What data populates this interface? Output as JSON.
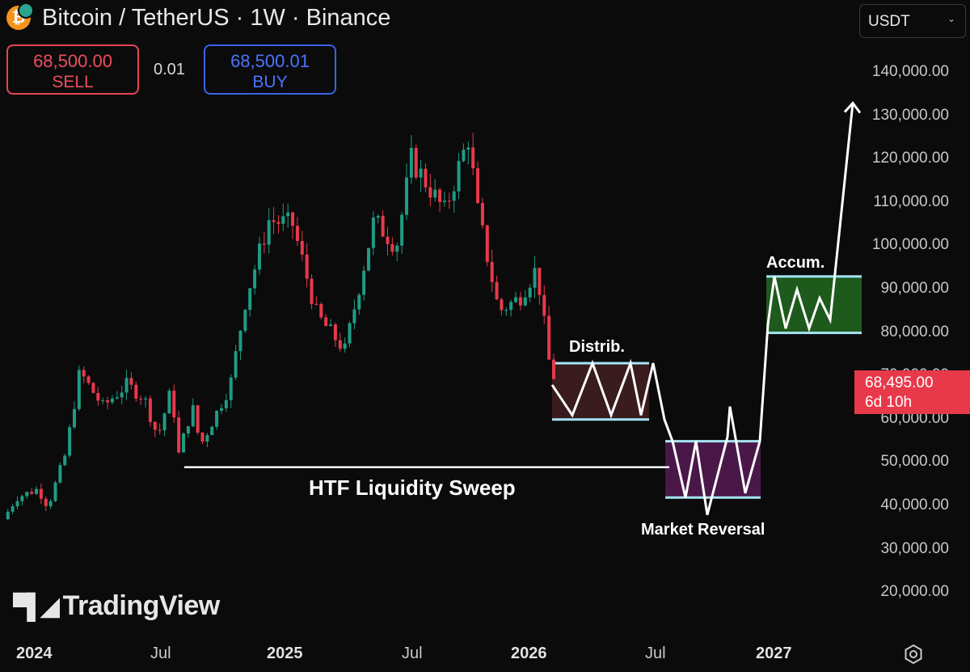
{
  "header": {
    "symbol_title": "Bitcoin / TetherUS · 1W · Binance",
    "icon": "bitcoin-icon"
  },
  "trade": {
    "sell_price": "68,500.00",
    "sell_label": "SELL",
    "spread": "0.01",
    "buy_price": "68,500.01",
    "buy_label": "BUY"
  },
  "currency_select": {
    "value": "USDT"
  },
  "y_axis": {
    "labels": [
      "140,000.00",
      "130,000.00",
      "120,000.00",
      "110,000.00",
      "100,000.00",
      "90,000.00",
      "80,000.00",
      "70,000.00",
      "60,000.00",
      "50,000.00",
      "40,000.00",
      "30,000.00",
      "20,000.00"
    ]
  },
  "x_axis": {
    "labels": [
      {
        "text": "2024",
        "major": true
      },
      {
        "text": "Jul",
        "major": false
      },
      {
        "text": "2025",
        "major": true
      },
      {
        "text": "Jul",
        "major": false
      },
      {
        "text": "2026",
        "major": true
      },
      {
        "text": "Jul",
        "major": false
      },
      {
        "text": "2027",
        "major": true
      }
    ]
  },
  "price_tag": {
    "price": "68,495.00",
    "countdown": "6d 10h"
  },
  "annotations": {
    "distribution": "Distrib.",
    "accumulation": "Accum.",
    "sweep": "HTF Liquidity Sweep",
    "reversal": "Market Reversal"
  },
  "logo": {
    "text": "TradingView"
  },
  "colors": {
    "up": "#1f9c82",
    "down": "#e8394a",
    "background": "#0b0b0c",
    "distrib_fill": "#3a1b1e",
    "reversal_fill": "#4a1848",
    "accum_fill": "#1e5a1c",
    "zone_line": "#a6e4f5",
    "projection": "#ffffff"
  },
  "chart_data": {
    "type": "candlestick",
    "symbol": "BTCUSDT",
    "timeframe": "1W",
    "x_range": [
      "2023-11",
      "2027-05"
    ],
    "ylim": [
      15000,
      145000
    ],
    "price_path": [
      {
        "x": "2023-11-20",
        "y": 37000
      },
      {
        "x": "2023-12-10",
        "y": 42000
      },
      {
        "x": "2024-01-10",
        "y": 44000
      },
      {
        "x": "2024-01-25",
        "y": 40000
      },
      {
        "x": "2024-02-20",
        "y": 52000
      },
      {
        "x": "2024-03-12",
        "y": 71000
      },
      {
        "x": "2024-04-15",
        "y": 63000
      },
      {
        "x": "2024-05-20",
        "y": 68000
      },
      {
        "x": "2024-06-15",
        "y": 65000
      },
      {
        "x": "2024-07-05",
        "y": 56000
      },
      {
        "x": "2024-07-25",
        "y": 67000
      },
      {
        "x": "2024-08-05",
        "y": 52000
      },
      {
        "x": "2024-08-25",
        "y": 63000
      },
      {
        "x": "2024-09-06",
        "y": 54000
      },
      {
        "x": "2024-10-20",
        "y": 68000
      },
      {
        "x": "2024-11-12",
        "y": 88000
      },
      {
        "x": "2024-12-16",
        "y": 106000
      },
      {
        "x": "2025-01-20",
        "y": 105000
      },
      {
        "x": "2025-02-25",
        "y": 84000
      },
      {
        "x": "2025-04-07",
        "y": 76000
      },
      {
        "x": "2025-05-20",
        "y": 106000
      },
      {
        "x": "2025-06-22",
        "y": 100000
      },
      {
        "x": "2025-07-14",
        "y": 120000
      },
      {
        "x": "2025-09-01",
        "y": 108000
      },
      {
        "x": "2025-10-06",
        "y": 125000
      },
      {
        "x": "2025-10-20",
        "y": 108000
      },
      {
        "x": "2025-11-20",
        "y": 85000
      },
      {
        "x": "2025-12-20",
        "y": 88000
      },
      {
        "x": "2026-01-15",
        "y": 95000
      },
      {
        "x": "2026-02-05",
        "y": 70000
      }
    ],
    "zones": [
      {
        "label": "Distrib.",
        "top": 73000,
        "bottom": 60000
      },
      {
        "label": "Market Reversal",
        "top": 55000,
        "bottom": 42000
      },
      {
        "label": "Accum.",
        "top": 93000,
        "bottom": 80000
      }
    ],
    "sweep_level": 49000,
    "projection_path": [
      {
        "x": "2026-02",
        "y": 68000
      },
      {
        "x": "2026-03",
        "y": 61000
      },
      {
        "x": "2026-03",
        "y": 73000
      },
      {
        "x": "2026-04",
        "y": 61000
      },
      {
        "x": "2026-05",
        "y": 73000
      },
      {
        "x": "2026-05",
        "y": 61000
      },
      {
        "x": "2026-06",
        "y": 73000
      },
      {
        "x": "2026-07",
        "y": 60000
      },
      {
        "x": "2026-08",
        "y": 55000
      },
      {
        "x": "2026-08",
        "y": 42000
      },
      {
        "x": "2026-09",
        "y": 55000
      },
      {
        "x": "2026-09",
        "y": 38000
      },
      {
        "x": "2026-10",
        "y": 56000
      },
      {
        "x": "2026-11",
        "y": 63000
      },
      {
        "x": "2026-11",
        "y": 43000
      },
      {
        "x": "2026-12",
        "y": 55000
      },
      {
        "x": "2027-01",
        "y": 82000
      },
      {
        "x": "2027-01",
        "y": 93000
      },
      {
        "x": "2027-02",
        "y": 81000
      },
      {
        "x": "2027-02",
        "y": 90000
      },
      {
        "x": "2027-03",
        "y": 81000
      },
      {
        "x": "2027-03",
        "y": 88000
      },
      {
        "x": "2027-04",
        "y": 83000
      },
      {
        "x": "2027-05",
        "y": 133000
      }
    ]
  }
}
